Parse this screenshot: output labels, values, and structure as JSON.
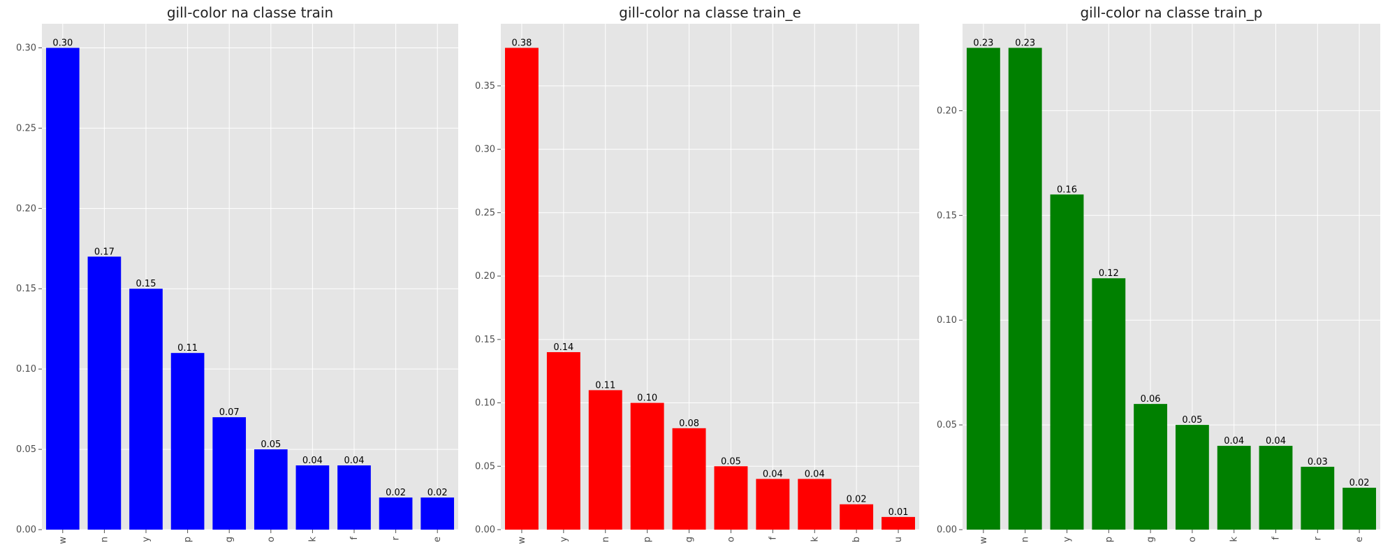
{
  "chart_data": [
    {
      "type": "bar",
      "title": "gill-color na classe train",
      "categories": [
        "w",
        "n",
        "y",
        "p",
        "g",
        "o",
        "k",
        "f",
        "r",
        "e"
      ],
      "values": [
        0.3,
        0.17,
        0.15,
        0.11,
        0.07,
        0.05,
        0.04,
        0.04,
        0.02,
        0.02
      ],
      "value_labels": [
        "0.30",
        "0.17",
        "0.15",
        "0.11",
        "0.07",
        "0.05",
        "0.04",
        "0.04",
        "0.02",
        "0.02"
      ],
      "color": "#0000ff",
      "xlabel": "",
      "ylabel": "",
      "ylim": [
        0,
        0.315
      ],
      "yticks": [
        0.0,
        0.05,
        0.1,
        0.15,
        0.2,
        0.25,
        0.3
      ],
      "ytick_labels": [
        "0.00",
        "0.05",
        "0.10",
        "0.15",
        "0.20",
        "0.25",
        "0.30"
      ],
      "grid": true
    },
    {
      "type": "bar",
      "title": "gill-color na classe train_e",
      "categories": [
        "w",
        "y",
        "n",
        "p",
        "g",
        "o",
        "f",
        "k",
        "b",
        "u"
      ],
      "values": [
        0.38,
        0.14,
        0.11,
        0.1,
        0.08,
        0.05,
        0.04,
        0.04,
        0.02,
        0.01
      ],
      "value_labels": [
        "0.38",
        "0.14",
        "0.11",
        "0.10",
        "0.08",
        "0.05",
        "0.04",
        "0.04",
        "0.02",
        "0.01"
      ],
      "color": "#ff0000",
      "xlabel": "",
      "ylabel": "",
      "ylim": [
        0,
        0.399
      ],
      "yticks": [
        0.0,
        0.05,
        0.1,
        0.15,
        0.2,
        0.25,
        0.3,
        0.35
      ],
      "ytick_labels": [
        "0.00",
        "0.05",
        "0.10",
        "0.15",
        "0.20",
        "0.25",
        "0.30",
        "0.35"
      ],
      "grid": true
    },
    {
      "type": "bar",
      "title": "gill-color na classe train_p",
      "categories": [
        "w",
        "n",
        "y",
        "p",
        "g",
        "o",
        "k",
        "f",
        "r",
        "e"
      ],
      "values": [
        0.23,
        0.23,
        0.16,
        0.12,
        0.06,
        0.05,
        0.04,
        0.04,
        0.03,
        0.02
      ],
      "value_labels": [
        "0.23",
        "0.23",
        "0.16",
        "0.12",
        "0.06",
        "0.05",
        "0.04",
        "0.04",
        "0.03",
        "0.02"
      ],
      "color": "#008000",
      "xlabel": "",
      "ylabel": "",
      "ylim": [
        0,
        0.2415
      ],
      "yticks": [
        0.0,
        0.05,
        0.1,
        0.15,
        0.2
      ],
      "ytick_labels": [
        "0.00",
        "0.05",
        "0.10",
        "0.15",
        "0.20"
      ],
      "grid": true
    }
  ]
}
